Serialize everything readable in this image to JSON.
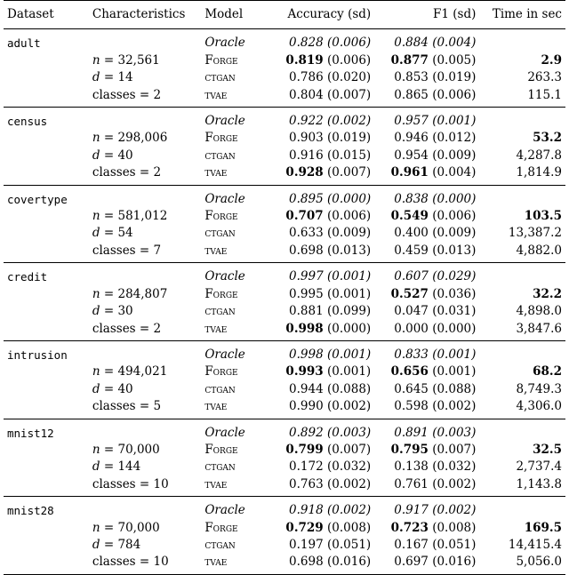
{
  "table": {
    "headers": {
      "dataset": "Dataset",
      "characteristics": "Characteristics",
      "model": "Model",
      "accuracy": "Accuracy (sd)",
      "f1": "F1 (sd)",
      "time": "Time in sec"
    },
    "groups": [
      {
        "dataset": "adult",
        "rows": [
          {
            "char": "",
            "model": "Oracle",
            "acc": "0.828",
            "acc_sd": "(0.006)",
            "f1": "0.884",
            "f1_sd": "(0.004)",
            "time": ""
          },
          {
            "char": "n = 32,561",
            "model": "Forge",
            "acc": "0.819",
            "acc_sd": "(0.006)",
            "f1": "0.877",
            "f1_sd": "(0.005)",
            "time": "2.9"
          },
          {
            "char": "d = 14",
            "model": "ctgan",
            "acc": "0.786",
            "acc_sd": "(0.020)",
            "f1": "0.853",
            "f1_sd": "(0.019)",
            "time": "263.3"
          },
          {
            "char": "classes = 2",
            "model": "tvae",
            "acc": "0.804",
            "acc_sd": "(0.007)",
            "f1": "0.865",
            "f1_sd": "(0.006)",
            "time": "115.1"
          }
        ]
      },
      {
        "dataset": "census",
        "rows": [
          {
            "char": "",
            "model": "Oracle",
            "acc": "0.922",
            "acc_sd": "(0.002)",
            "f1": "0.957",
            "f1_sd": "(0.001)",
            "time": ""
          },
          {
            "char": "n = 298,006",
            "model": "Forge",
            "acc": "0.903",
            "acc_sd": "(0.019)",
            "f1": "0.946",
            "f1_sd": "(0.012)",
            "time": "53.2"
          },
          {
            "char": "d = 40",
            "model": "ctgan",
            "acc": "0.916",
            "acc_sd": "(0.015)",
            "f1": "0.954",
            "f1_sd": "(0.009)",
            "time": "4,287.8"
          },
          {
            "char": "classes = 2",
            "model": "tvae",
            "acc": "0.928",
            "acc_sd": "(0.007)",
            "f1": "0.961",
            "f1_sd": "(0.004)",
            "time": "1,814.9"
          }
        ]
      },
      {
        "dataset": "covertype",
        "rows": [
          {
            "char": "",
            "model": "Oracle",
            "acc": "0.895",
            "acc_sd": "(0.000)",
            "f1": "0.838",
            "f1_sd": "(0.000)",
            "time": ""
          },
          {
            "char": "n = 581,012",
            "model": "Forge",
            "acc": "0.707",
            "acc_sd": "(0.006)",
            "f1": "0.549",
            "f1_sd": "(0.006)",
            "time": "103.5"
          },
          {
            "char": "d = 54",
            "model": "ctgan",
            "acc": "0.633",
            "acc_sd": "(0.009)",
            "f1": "0.400",
            "f1_sd": "(0.009)",
            "time": "13,387.2"
          },
          {
            "char": "classes = 7",
            "model": "tvae",
            "acc": "0.698",
            "acc_sd": "(0.013)",
            "f1": "0.459",
            "f1_sd": "(0.013)",
            "time": "4,882.0"
          }
        ]
      },
      {
        "dataset": "credit",
        "rows": [
          {
            "char": "",
            "model": "Oracle",
            "acc": "0.997",
            "acc_sd": "(0.001)",
            "f1": "0.607",
            "f1_sd": "(0.029)",
            "time": ""
          },
          {
            "char": "n = 284,807",
            "model": "Forge",
            "acc": "0.995",
            "acc_sd": "(0.001)",
            "f1": "0.527",
            "f1_sd": "(0.036)",
            "time": "32.2"
          },
          {
            "char": "d = 30",
            "model": "ctgan",
            "acc": "0.881",
            "acc_sd": "(0.099)",
            "f1": "0.047",
            "f1_sd": "(0.031)",
            "time": "4,898.0"
          },
          {
            "char": "classes = 2",
            "model": "tvae",
            "acc": "0.998",
            "acc_sd": "(0.000)",
            "f1": "0.000",
            "f1_sd": "(0.000)",
            "time": "3,847.6"
          }
        ]
      },
      {
        "dataset": "intrusion",
        "rows": [
          {
            "char": "",
            "model": "Oracle",
            "acc": "0.998",
            "acc_sd": "(0.001)",
            "f1": "0.833",
            "f1_sd": "(0.001)",
            "time": ""
          },
          {
            "char": "n = 494,021",
            "model": "Forge",
            "acc": "0.993",
            "acc_sd": "(0.001)",
            "f1": "0.656",
            "f1_sd": "(0.001)",
            "time": "68.2"
          },
          {
            "char": "d = 40",
            "model": "ctgan",
            "acc": "0.944",
            "acc_sd": "(0.088)",
            "f1": "0.645",
            "f1_sd": "(0.088)",
            "time": "8,749.3"
          },
          {
            "char": "classes = 5",
            "model": "tvae",
            "acc": "0.990",
            "acc_sd": "(0.002)",
            "f1": "0.598",
            "f1_sd": "(0.002)",
            "time": "4,306.0"
          }
        ]
      },
      {
        "dataset": "mnist12",
        "rows": [
          {
            "char": "",
            "model": "Oracle",
            "acc": "0.892",
            "acc_sd": "(0.003)",
            "f1": "0.891",
            "f1_sd": "(0.003)",
            "time": ""
          },
          {
            "char": "n = 70,000",
            "model": "Forge",
            "acc": "0.799",
            "acc_sd": "(0.007)",
            "f1": "0.795",
            "f1_sd": "(0.007)",
            "time": "32.5"
          },
          {
            "char": "d = 144",
            "model": "ctgan",
            "acc": "0.172",
            "acc_sd": "(0.032)",
            "f1": "0.138",
            "f1_sd": "(0.032)",
            "time": "2,737.4"
          },
          {
            "char": "classes = 10",
            "model": "tvae",
            "acc": "0.763",
            "acc_sd": "(0.002)",
            "f1": "0.761",
            "f1_sd": "(0.002)",
            "time": "1,143.8"
          }
        ]
      },
      {
        "dataset": "mnist28",
        "rows": [
          {
            "char": "",
            "model": "Oracle",
            "acc": "0.918",
            "acc_sd": "(0.002)",
            "f1": "0.917",
            "f1_sd": "(0.002)",
            "time": ""
          },
          {
            "char": "n = 70,000",
            "model": "Forge",
            "acc": "0.729",
            "acc_sd": "(0.008)",
            "f1": "0.723",
            "f1_sd": "(0.008)",
            "time": "169.5"
          },
          {
            "char": "d = 784",
            "model": "ctgan",
            "acc": "0.197",
            "acc_sd": "(0.051)",
            "f1": "0.167",
            "f1_sd": "(0.051)",
            "time": "14,415.4"
          },
          {
            "char": "classes = 10",
            "model": "tvae",
            "acc": "0.698",
            "acc_sd": "(0.016)",
            "f1": "0.697",
            "f1_sd": "(0.016)",
            "time": "5,056.0"
          }
        ]
      }
    ]
  }
}
